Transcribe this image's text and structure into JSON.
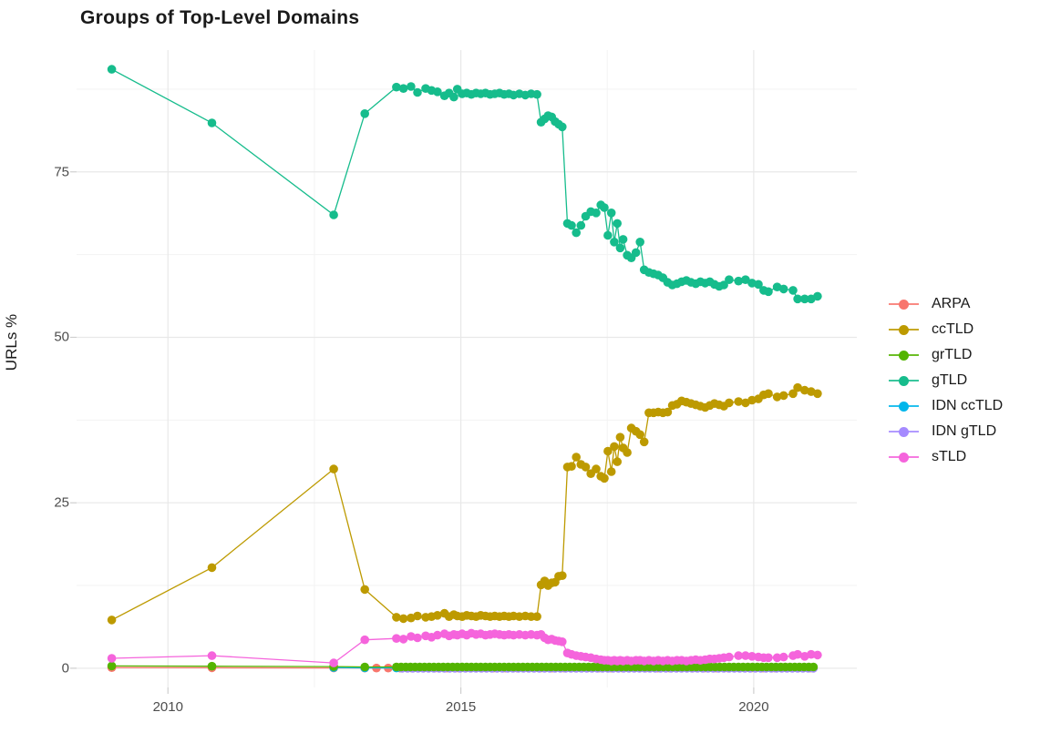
{
  "title": "Groups of Top-Level Domains",
  "y_axis_title": "URLs %",
  "chart_data": {
    "type": "line",
    "title": "Groups of Top-Level Domains",
    "xlabel": "",
    "ylabel": "URLs %",
    "grid": true,
    "legend_position": "right",
    "x_ticks": [
      2010,
      2015,
      2020
    ],
    "x_minor_ticks": [
      2012.5,
      2017.5
    ],
    "y_ticks": [
      0,
      25,
      50,
      75
    ],
    "y_minor_ticks": [
      12.5,
      37.5,
      62.5,
      87.5
    ],
    "x_domain": [
      2008.44,
      2021.76
    ],
    "y_domain": [
      -2.9,
      93.4
    ],
    "grid_major_color": "#e8e8e8",
    "grid_minor_color": "#f3f3f3",
    "tick_mark_color": "#cfcfcf",
    "series": [
      {
        "name": "ARPA",
        "color": "#F8766D",
        "points": [
          [
            2009.04,
            0.1
          ],
          [
            2010.75,
            0.07
          ],
          [
            2012.83,
            0.05
          ]
        ],
        "flat": {
          "from": 2013.36,
          "to": 2021.09,
          "step": 0.2,
          "value": 0.03
        }
      },
      {
        "name": "ccTLD",
        "color": "#BD9A00",
        "points": [
          [
            2009.04,
            7.3
          ],
          [
            2010.75,
            15.2
          ],
          [
            2012.83,
            30.1
          ],
          [
            2013.36,
            11.9
          ],
          [
            2013.9,
            7.7
          ],
          [
            2014.02,
            7.5
          ],
          [
            2014.15,
            7.6
          ],
          [
            2014.26,
            7.9
          ],
          [
            2014.4,
            7.7
          ],
          [
            2014.5,
            7.8
          ],
          [
            2014.6,
            8.0
          ],
          [
            2014.72,
            8.3
          ],
          [
            2014.8,
            7.8
          ],
          [
            2014.88,
            8.1
          ],
          [
            2014.94,
            7.9
          ],
          [
            2015.02,
            7.8
          ],
          [
            2015.1,
            8.0
          ],
          [
            2015.18,
            7.9
          ],
          [
            2015.26,
            7.8
          ],
          [
            2015.34,
            8.0
          ],
          [
            2015.42,
            7.9
          ],
          [
            2015.5,
            7.8
          ],
          [
            2015.58,
            7.9
          ],
          [
            2015.66,
            7.8
          ],
          [
            2015.74,
            7.9
          ],
          [
            2015.82,
            7.8
          ],
          [
            2015.9,
            7.9
          ],
          [
            2016.0,
            7.8
          ],
          [
            2016.1,
            7.9
          ],
          [
            2016.2,
            7.8
          ],
          [
            2016.3,
            7.8
          ],
          [
            2016.37,
            12.6
          ],
          [
            2016.43,
            13.2
          ],
          [
            2016.49,
            12.5
          ],
          [
            2016.55,
            12.9
          ],
          [
            2016.61,
            13.0
          ],
          [
            2016.67,
            13.9
          ],
          [
            2016.73,
            14.0
          ],
          [
            2016.82,
            30.4
          ],
          [
            2016.89,
            30.5
          ],
          [
            2016.97,
            31.9
          ],
          [
            2017.05,
            30.8
          ],
          [
            2017.13,
            30.4
          ],
          [
            2017.22,
            29.4
          ],
          [
            2017.31,
            30.1
          ],
          [
            2017.39,
            29.0
          ],
          [
            2017.45,
            28.7
          ],
          [
            2017.51,
            32.8
          ],
          [
            2017.57,
            29.7
          ],
          [
            2017.62,
            33.5
          ],
          [
            2017.67,
            31.2
          ],
          [
            2017.72,
            34.9
          ],
          [
            2017.77,
            33.3
          ],
          [
            2017.84,
            32.6
          ],
          [
            2017.91,
            36.3
          ],
          [
            2017.99,
            35.8
          ],
          [
            2018.06,
            35.3
          ],
          [
            2018.13,
            34.2
          ],
          [
            2018.21,
            38.6
          ],
          [
            2018.29,
            38.6
          ],
          [
            2018.37,
            38.7
          ],
          [
            2018.45,
            38.6
          ],
          [
            2018.53,
            38.7
          ],
          [
            2018.61,
            39.7
          ],
          [
            2018.69,
            39.9
          ],
          [
            2018.77,
            40.4
          ],
          [
            2018.85,
            40.2
          ],
          [
            2018.93,
            40.0
          ],
          [
            2019.01,
            39.8
          ],
          [
            2019.09,
            39.6
          ],
          [
            2019.17,
            39.4
          ],
          [
            2019.25,
            39.7
          ],
          [
            2019.33,
            40.0
          ],
          [
            2019.41,
            39.8
          ],
          [
            2019.49,
            39.6
          ],
          [
            2019.58,
            40.1
          ],
          [
            2019.74,
            40.3
          ],
          [
            2019.86,
            40.1
          ],
          [
            2019.97,
            40.5
          ],
          [
            2020.08,
            40.7
          ],
          [
            2020.17,
            41.3
          ],
          [
            2020.25,
            41.5
          ],
          [
            2020.4,
            41.0
          ],
          [
            2020.51,
            41.2
          ],
          [
            2020.67,
            41.5
          ],
          [
            2020.75,
            42.4
          ],
          [
            2020.87,
            42.0
          ],
          [
            2020.98,
            41.8
          ],
          [
            2021.09,
            41.5
          ]
        ]
      },
      {
        "name": "grTLD",
        "color": "#53B400",
        "points": [
          [
            2009.04,
            0.35
          ],
          [
            2010.75,
            0.3
          ],
          [
            2012.83,
            0.25
          ],
          [
            2013.36,
            0.2
          ]
        ],
        "flat": {
          "from": 2013.9,
          "to": 2021.09,
          "step": 0.08,
          "value": 0.2
        }
      },
      {
        "name": "gTLD",
        "color": "#16BC8C",
        "points": [
          [
            2009.04,
            90.5
          ],
          [
            2010.75,
            82.4
          ],
          [
            2012.83,
            68.5
          ],
          [
            2013.36,
            83.8
          ],
          [
            2013.9,
            87.8
          ],
          [
            2014.02,
            87.6
          ],
          [
            2014.15,
            87.9
          ],
          [
            2014.26,
            87.0
          ],
          [
            2014.4,
            87.6
          ],
          [
            2014.5,
            87.3
          ],
          [
            2014.6,
            87.1
          ],
          [
            2014.72,
            86.5
          ],
          [
            2014.8,
            86.9
          ],
          [
            2014.88,
            86.3
          ],
          [
            2014.94,
            87.5
          ],
          [
            2015.02,
            86.8
          ],
          [
            2015.1,
            86.9
          ],
          [
            2015.18,
            86.7
          ],
          [
            2015.26,
            86.9
          ],
          [
            2015.34,
            86.8
          ],
          [
            2015.42,
            86.9
          ],
          [
            2015.5,
            86.7
          ],
          [
            2015.58,
            86.8
          ],
          [
            2015.66,
            86.9
          ],
          [
            2015.74,
            86.7
          ],
          [
            2015.82,
            86.8
          ],
          [
            2015.9,
            86.6
          ],
          [
            2016.0,
            86.8
          ],
          [
            2016.1,
            86.6
          ],
          [
            2016.2,
            86.8
          ],
          [
            2016.3,
            86.7
          ],
          [
            2016.37,
            82.5
          ],
          [
            2016.43,
            83.0
          ],
          [
            2016.49,
            83.5
          ],
          [
            2016.55,
            83.3
          ],
          [
            2016.61,
            82.6
          ],
          [
            2016.67,
            82.2
          ],
          [
            2016.73,
            81.8
          ],
          [
            2016.82,
            67.2
          ],
          [
            2016.89,
            66.9
          ],
          [
            2016.97,
            65.8
          ],
          [
            2017.05,
            66.9
          ],
          [
            2017.13,
            68.3
          ],
          [
            2017.22,
            69.0
          ],
          [
            2017.31,
            68.8
          ],
          [
            2017.39,
            70.0
          ],
          [
            2017.45,
            69.6
          ],
          [
            2017.51,
            65.4
          ],
          [
            2017.57,
            68.8
          ],
          [
            2017.62,
            64.4
          ],
          [
            2017.67,
            67.2
          ],
          [
            2017.72,
            63.5
          ],
          [
            2017.77,
            64.8
          ],
          [
            2017.84,
            62.4
          ],
          [
            2017.91,
            62.0
          ],
          [
            2017.99,
            62.8
          ],
          [
            2018.06,
            64.4
          ],
          [
            2018.13,
            60.2
          ],
          [
            2018.21,
            59.8
          ],
          [
            2018.29,
            59.6
          ],
          [
            2018.37,
            59.4
          ],
          [
            2018.45,
            59.0
          ],
          [
            2018.53,
            58.3
          ],
          [
            2018.61,
            57.9
          ],
          [
            2018.69,
            58.1
          ],
          [
            2018.77,
            58.4
          ],
          [
            2018.85,
            58.6
          ],
          [
            2018.93,
            58.3
          ],
          [
            2019.01,
            58.1
          ],
          [
            2019.09,
            58.4
          ],
          [
            2019.17,
            58.2
          ],
          [
            2019.25,
            58.4
          ],
          [
            2019.33,
            58.0
          ],
          [
            2019.41,
            57.7
          ],
          [
            2019.49,
            57.9
          ],
          [
            2019.58,
            58.7
          ],
          [
            2019.74,
            58.5
          ],
          [
            2019.86,
            58.7
          ],
          [
            2019.97,
            58.2
          ],
          [
            2020.08,
            58.0
          ],
          [
            2020.17,
            57.1
          ],
          [
            2020.25,
            56.9
          ],
          [
            2020.4,
            57.6
          ],
          [
            2020.51,
            57.3
          ],
          [
            2020.67,
            57.1
          ],
          [
            2020.75,
            55.8
          ],
          [
            2020.87,
            55.8
          ],
          [
            2020.98,
            55.8
          ],
          [
            2021.09,
            56.2
          ]
        ]
      },
      {
        "name": "IDN ccTLD",
        "color": "#00B6EB",
        "points": [
          [
            2012.83,
            0.1
          ],
          [
            2013.36,
            0.06
          ]
        ],
        "flat": {
          "from": 2013.9,
          "to": 2021.09,
          "step": 0.09,
          "value": 0.05
        }
      },
      {
        "name": "IDN gTLD",
        "color": "#A58AFF",
        "points": [],
        "flat": {
          "from": 2014.0,
          "to": 2021.09,
          "step": 0.09,
          "value": 0.0
        }
      },
      {
        "name": "sTLD",
        "color": "#F564DC",
        "points": [
          [
            2009.04,
            1.5
          ],
          [
            2010.75,
            1.9
          ],
          [
            2012.83,
            0.8
          ],
          [
            2013.36,
            4.3
          ],
          [
            2013.9,
            4.5
          ],
          [
            2014.02,
            4.4
          ],
          [
            2014.15,
            4.8
          ],
          [
            2014.26,
            4.6
          ],
          [
            2014.4,
            4.9
          ],
          [
            2014.5,
            4.7
          ],
          [
            2014.6,
            5.0
          ],
          [
            2014.72,
            5.2
          ],
          [
            2014.8,
            4.9
          ],
          [
            2014.88,
            5.1
          ],
          [
            2014.94,
            5.0
          ],
          [
            2015.02,
            5.2
          ],
          [
            2015.1,
            5.0
          ],
          [
            2015.18,
            5.3
          ],
          [
            2015.26,
            5.1
          ],
          [
            2015.34,
            5.2
          ],
          [
            2015.42,
            5.0
          ],
          [
            2015.5,
            5.1
          ],
          [
            2015.58,
            5.2
          ],
          [
            2015.66,
            5.1
          ],
          [
            2015.74,
            5.0
          ],
          [
            2015.82,
            5.1
          ],
          [
            2015.9,
            5.0
          ],
          [
            2016.0,
            5.1
          ],
          [
            2016.1,
            5.0
          ],
          [
            2016.2,
            5.1
          ],
          [
            2016.3,
            5.0
          ],
          [
            2016.37,
            5.1
          ],
          [
            2016.43,
            4.6
          ],
          [
            2016.49,
            4.3
          ],
          [
            2016.55,
            4.4
          ],
          [
            2016.61,
            4.2
          ],
          [
            2016.67,
            4.1
          ],
          [
            2016.73,
            4.0
          ],
          [
            2016.82,
            2.3
          ],
          [
            2016.89,
            2.1
          ],
          [
            2016.97,
            1.9
          ],
          [
            2017.05,
            1.8
          ],
          [
            2017.13,
            1.7
          ],
          [
            2017.22,
            1.6
          ],
          [
            2017.31,
            1.4
          ],
          [
            2017.39,
            1.3
          ],
          [
            2017.45,
            1.2
          ],
          [
            2017.51,
            1.2
          ],
          [
            2017.57,
            1.1
          ],
          [
            2017.62,
            1.2
          ],
          [
            2017.67,
            1.1
          ],
          [
            2017.72,
            1.2
          ],
          [
            2017.77,
            1.1
          ],
          [
            2017.84,
            1.2
          ],
          [
            2017.91,
            1.1
          ],
          [
            2017.99,
            1.2
          ],
          [
            2018.06,
            1.2
          ],
          [
            2018.13,
            1.1
          ],
          [
            2018.21,
            1.2
          ],
          [
            2018.29,
            1.1
          ],
          [
            2018.37,
            1.2
          ],
          [
            2018.45,
            1.1
          ],
          [
            2018.53,
            1.2
          ],
          [
            2018.61,
            1.1
          ],
          [
            2018.69,
            1.2
          ],
          [
            2018.77,
            1.2
          ],
          [
            2018.85,
            1.1
          ],
          [
            2018.93,
            1.2
          ],
          [
            2019.01,
            1.3
          ],
          [
            2019.09,
            1.2
          ],
          [
            2019.17,
            1.3
          ],
          [
            2019.25,
            1.4
          ],
          [
            2019.33,
            1.4
          ],
          [
            2019.41,
            1.5
          ],
          [
            2019.49,
            1.6
          ],
          [
            2019.58,
            1.7
          ],
          [
            2019.74,
            1.9
          ],
          [
            2019.86,
            1.9
          ],
          [
            2019.97,
            1.8
          ],
          [
            2020.08,
            1.7
          ],
          [
            2020.17,
            1.6
          ],
          [
            2020.25,
            1.6
          ],
          [
            2020.4,
            1.6
          ],
          [
            2020.51,
            1.7
          ],
          [
            2020.67,
            1.9
          ],
          [
            2020.75,
            2.1
          ],
          [
            2020.87,
            1.8
          ],
          [
            2020.98,
            2.1
          ],
          [
            2021.09,
            2.0
          ]
        ]
      }
    ]
  },
  "legend": {
    "entries": [
      "ARPA",
      "ccTLD",
      "grTLD",
      "gTLD",
      "IDN ccTLD",
      "IDN gTLD",
      "sTLD"
    ]
  }
}
